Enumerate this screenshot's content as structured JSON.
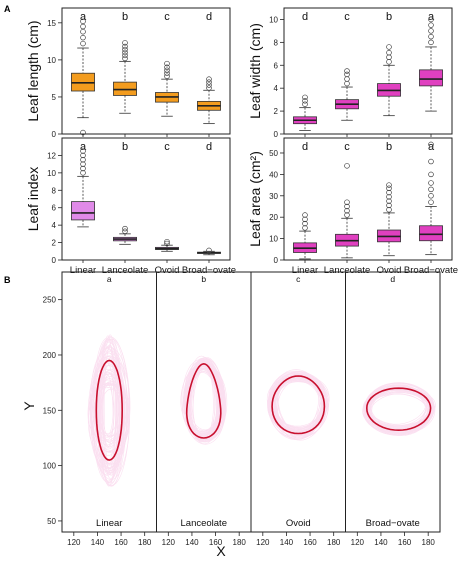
{
  "panel_a_letter": "A",
  "panel_b_letter": "B",
  "chart_data": [
    {
      "type": "boxplot",
      "panel": "A-top-left",
      "ylabel": "Leaf length (cm)",
      "ylim": [
        0,
        17
      ],
      "yticks": [
        0,
        5,
        10,
        15
      ],
      "categories": [
        "Linear",
        "Lanceolate",
        "Ovoid",
        "Broad−ovate"
      ],
      "letters": [
        "a",
        "b",
        "c",
        "d"
      ],
      "color": "#f39c1e",
      "boxes": [
        {
          "q1": 5.8,
          "median": 6.9,
          "q3": 8.2,
          "whislo": 2.2,
          "whishi": 11.6,
          "fliers": [
            0.2,
            12.2,
            13.0,
            13.8,
            14.5,
            15.2
          ]
        },
        {
          "q1": 5.2,
          "median": 6.0,
          "q3": 7.0,
          "whislo": 2.8,
          "whishi": 9.8,
          "fliers": [
            10.2,
            10.6,
            11.0,
            11.4,
            11.8,
            12.3
          ]
        },
        {
          "q1": 4.3,
          "median": 5.0,
          "q3": 5.6,
          "whislo": 2.4,
          "whishi": 7.4,
          "fliers": [
            7.8,
            8.2,
            8.6,
            9.0,
            9.5
          ]
        },
        {
          "q1": 3.2,
          "median": 3.8,
          "q3": 4.4,
          "whislo": 1.4,
          "whishi": 5.9,
          "fliers": [
            6.2,
            6.6,
            7.0,
            7.4
          ]
        }
      ]
    },
    {
      "type": "boxplot",
      "panel": "A-top-right",
      "ylabel": "Leaf width (cm)",
      "ylim": [
        0,
        11
      ],
      "yticks": [
        0,
        2,
        4,
        6,
        8,
        10
      ],
      "categories": [
        "Linear",
        "Lanceolate",
        "Ovoid",
        "Broad−ovate"
      ],
      "letters": [
        "d",
        "c",
        "b",
        "a"
      ],
      "color": "#e040c0",
      "boxes": [
        {
          "q1": 0.9,
          "median": 1.2,
          "q3": 1.5,
          "whislo": 0.3,
          "whishi": 2.3,
          "fliers": [
            2.6,
            2.9,
            3.2
          ]
        },
        {
          "q1": 2.2,
          "median": 2.6,
          "q3": 3.0,
          "whislo": 1.2,
          "whishi": 4.1,
          "fliers": [
            4.4,
            4.8,
            5.2,
            5.5
          ]
        },
        {
          "q1": 3.3,
          "median": 3.8,
          "q3": 4.4,
          "whislo": 1.6,
          "whishi": 6.0,
          "fliers": [
            6.3,
            6.7,
            7.1,
            7.6
          ]
        },
        {
          "q1": 4.2,
          "median": 4.8,
          "q3": 5.6,
          "whislo": 2.0,
          "whishi": 7.6,
          "fliers": [
            8.0,
            8.5,
            9.0,
            9.5,
            10.0
          ]
        }
      ]
    },
    {
      "type": "boxplot",
      "panel": "A-bottom-left",
      "ylabel": "Leaf index",
      "ylim": [
        0,
        14
      ],
      "yticks": [
        0,
        2,
        4,
        6,
        8,
        10,
        12
      ],
      "xticklabels": true,
      "categories": [
        "Linear",
        "Lanceolate",
        "Ovoid",
        "Broad−ovate"
      ],
      "letters": [
        "a",
        "b",
        "c",
        "d"
      ],
      "color": "#e08ae8",
      "boxes": [
        {
          "q1": 4.6,
          "median": 5.4,
          "q3": 6.7,
          "whislo": 3.8,
          "whishi": 9.6,
          "fliers": [
            10.0,
            10.5,
            11.0,
            11.5,
            12.0,
            12.5
          ]
        },
        {
          "q1": 2.2,
          "median": 2.4,
          "q3": 2.6,
          "whislo": 1.8,
          "whishi": 3.0,
          "fliers": [
            3.3,
            3.6
          ]
        },
        {
          "q1": 1.2,
          "median": 1.3,
          "q3": 1.45,
          "whislo": 1.0,
          "whishi": 1.7,
          "fliers": [
            1.9,
            2.1
          ]
        },
        {
          "q1": 0.75,
          "median": 0.82,
          "q3": 0.9,
          "whislo": 0.6,
          "whishi": 1.0,
          "fliers": [
            1.1
          ]
        }
      ]
    },
    {
      "type": "boxplot",
      "panel": "A-bottom-right",
      "ylabel": "Leaf area (cm²)",
      "ylim": [
        0,
        57
      ],
      "yticks": [
        0,
        10,
        20,
        30,
        40,
        50
      ],
      "xticklabels": true,
      "categories": [
        "Linear",
        "Lanceolate",
        "Ovoid",
        "Broad−ovate"
      ],
      "letters": [
        "d",
        "c",
        "b",
        "a"
      ],
      "color": "#e040c0",
      "boxes": [
        {
          "q1": 3.5,
          "median": 5.5,
          "q3": 8.0,
          "whislo": 0.5,
          "whishi": 13.5,
          "fliers": [
            15.0,
            17.0,
            19.0,
            21.0
          ]
        },
        {
          "q1": 6.5,
          "median": 9.0,
          "q3": 12.0,
          "whislo": 1.0,
          "whishi": 19.5,
          "fliers": [
            21.0,
            23.0,
            25.0,
            27.0,
            44.0
          ]
        },
        {
          "q1": 8.5,
          "median": 11.0,
          "q3": 14.0,
          "whislo": 2.0,
          "whishi": 22.0,
          "fliers": [
            23.5,
            25.5,
            27.5,
            29.5,
            31.5,
            33.5,
            35.0
          ]
        },
        {
          "q1": 9.0,
          "median": 12.0,
          "q3": 16.0,
          "whislo": 2.5,
          "whishi": 25.0,
          "fliers": [
            27.0,
            30.0,
            33.0,
            36.0,
            40.0,
            46.0,
            54.0
          ]
        }
      ]
    },
    {
      "type": "shape-outlines",
      "panel": "B",
      "xlabel": "X",
      "ylabel": "Y",
      "xlim": [
        110,
        190
      ],
      "ylim": [
        40,
        275
      ],
      "xticks": [
        120,
        140,
        160,
        180
      ],
      "yticks": [
        50,
        100,
        150,
        200,
        250
      ],
      "facets": [
        {
          "name": "Linear",
          "letter": "a",
          "cx": 150,
          "cy": 150,
          "rx": 11,
          "ry": 45,
          "ryTop": 45,
          "ryBot": 45,
          "spreadX": 12,
          "spreadY": 50
        },
        {
          "name": "Lanceolate",
          "letter": "b",
          "cx": 150,
          "cy": 155,
          "rx": 14,
          "ry": 40,
          "ryTop": 37,
          "ryBot": 30,
          "spreadX": 8,
          "spreadY": 10
        },
        {
          "name": "Ovoid",
          "letter": "c",
          "cx": 150,
          "cy": 157,
          "rx": 22,
          "ry": 25,
          "ryTop": 24,
          "ryBot": 28,
          "spreadX": 6,
          "spreadY": 8
        },
        {
          "name": "Broad−ovate",
          "letter": "d",
          "cx": 155,
          "cy": 152,
          "rx": 27,
          "ry": 20,
          "ryTop": 18,
          "ryBot": 20,
          "spreadX": 5,
          "spreadY": 6
        }
      ],
      "outline_color": "#f3a6d6",
      "mean_color": "#c8102e"
    }
  ]
}
